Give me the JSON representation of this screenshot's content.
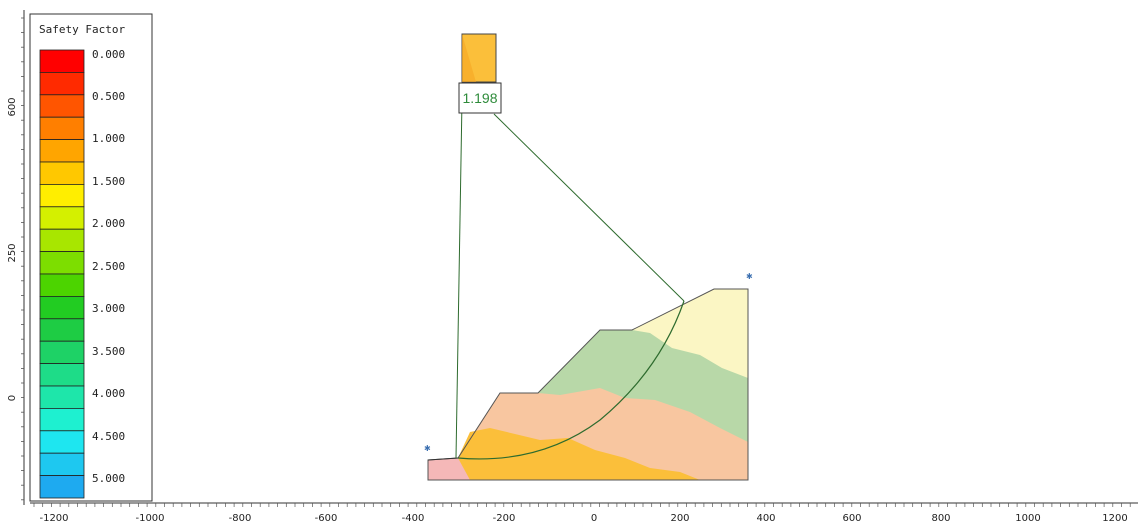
{
  "legend": {
    "title": "Safety Factor",
    "labels": [
      "0.000",
      "0.500",
      "1.000",
      "1.500",
      "2.000",
      "2.500",
      "3.000",
      "3.500",
      "4.000",
      "4.500",
      "5.000"
    ],
    "colors": [
      "#ff0000",
      "#ff2a00",
      "#ff5500",
      "#ff7f00",
      "#ffa500",
      "#ffc800",
      "#ffee00",
      "#d4f000",
      "#a8e600",
      "#7dde00",
      "#4cd400",
      "#22cc22",
      "#1ecc44",
      "#1ed266",
      "#1edc88",
      "#1ee6aa",
      "#1ef0d0",
      "#1ee6f0",
      "#1ec8f0",
      "#1eaaf0"
    ]
  },
  "axes": {
    "x_ticks": [
      "-1200",
      "-1000",
      "-800",
      "-600",
      "-400",
      "-200",
      "0",
      "200",
      "400",
      "600",
      "800",
      "1000",
      "1200"
    ],
    "y_ticks": [
      "600",
      "250",
      "0"
    ]
  },
  "result": {
    "safety_factor": "1.198"
  },
  "colors": {
    "layer_top": "#fbf6c4",
    "layer_green": "#b8d8a8",
    "layer_peach": "#f8c6a0",
    "layer_orange": "#fbbf3a",
    "layer_pink": "#f5b8b8",
    "slip_line": "#2e6b2e",
    "center_box": "#fbbf3a"
  }
}
